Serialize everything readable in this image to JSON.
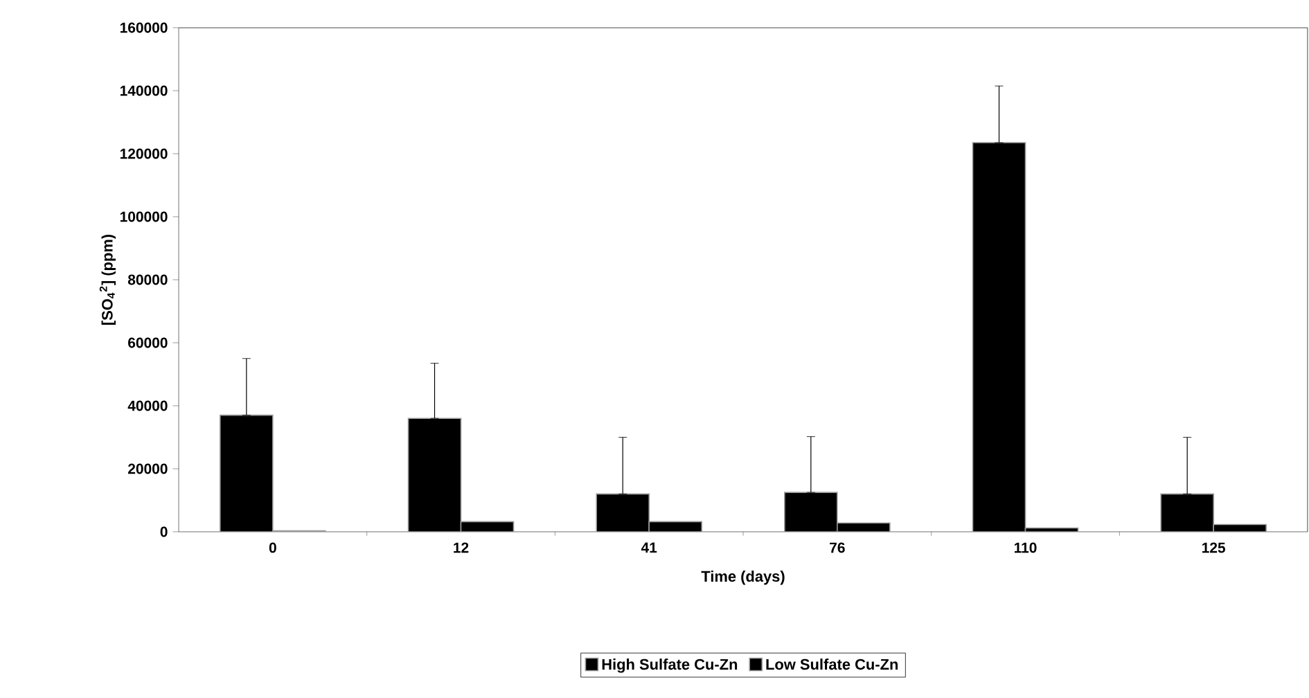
{
  "chart_data": {
    "type": "bar",
    "xlabel": "Time (days)",
    "ylabel": "[SO$_{4}$$^{2}$] (ppm)",
    "categories": [
      "0",
      "12",
      "41",
      "76",
      "110",
      "125"
    ],
    "series": [
      {
        "name": "High Sulfate Cu-Zn",
        "color": "#000000",
        "values": [
          37000,
          36000,
          12000,
          12500,
          123500,
          12000
        ],
        "errors": [
          [
            37000,
            55000
          ],
          [
            36000,
            53500
          ],
          [
            12000,
            30000
          ],
          [
            12500,
            30200
          ],
          [
            123500,
            141500
          ],
          [
            12000,
            30000
          ]
        ]
      },
      {
        "name": "Low Sulfate Cu-Zn",
        "color": "#000000",
        "values": [
          300,
          3200,
          3200,
          2800,
          1200,
          2300
        ]
      }
    ],
    "ylim": [
      0,
      160000
    ],
    "yticks": [
      0,
      20000,
      40000,
      60000,
      80000,
      100000,
      120000,
      140000,
      160000
    ],
    "grid": false,
    "legend": "bottom"
  }
}
